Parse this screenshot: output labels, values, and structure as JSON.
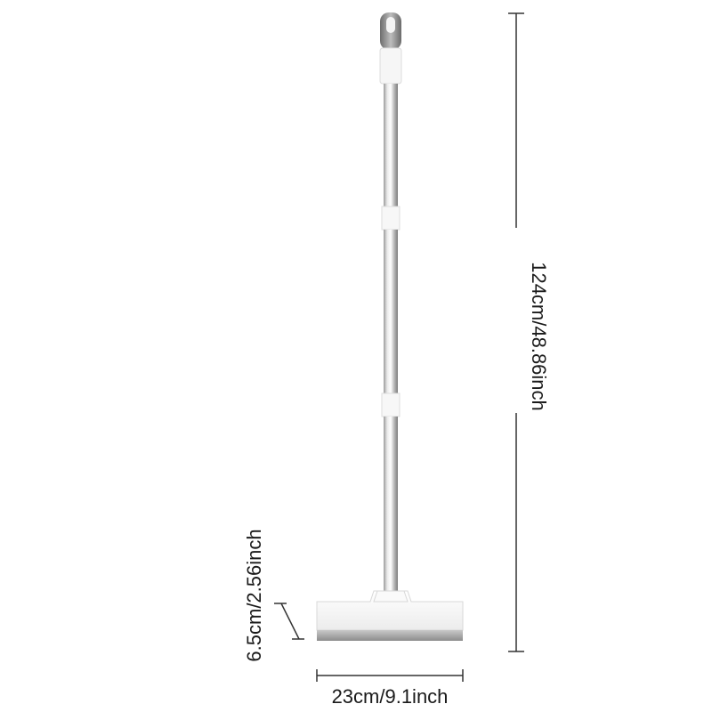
{
  "dimensions": {
    "height_label": "124cm/48.86inch",
    "head_depth_label": "6.5cm/2.56inch",
    "head_width_label": "23cm/9.1inch"
  },
  "colors": {
    "background": "#ffffff",
    "dimension_line": "#333333",
    "handle_light": "#f2f2f2",
    "handle_dark": "#8a8a8a",
    "connector": "#f7f7f7",
    "head_body": "#f4f4f4",
    "blade": "#9e9e9e"
  }
}
